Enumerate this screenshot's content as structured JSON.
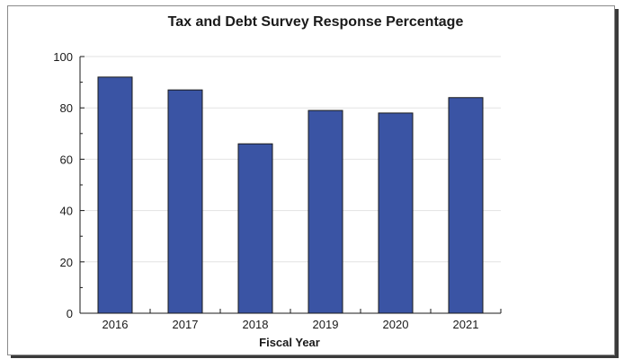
{
  "chart_data": {
    "type": "bar",
    "title": "Tax and Debt Survey Response Percentage",
    "xlabel": "Fiscal Year",
    "ylabel": "",
    "categories": [
      "2016",
      "2017",
      "2018",
      "2019",
      "2020",
      "2021"
    ],
    "values": [
      92,
      87,
      66,
      79,
      78,
      84
    ],
    "ylim": [
      0,
      100
    ],
    "yticks": [
      "0",
      "20",
      "40",
      "60",
      "80",
      "100"
    ],
    "grid": true,
    "bar_color": "#3a54a4",
    "bar_edge_color": "#1a1a1a"
  }
}
